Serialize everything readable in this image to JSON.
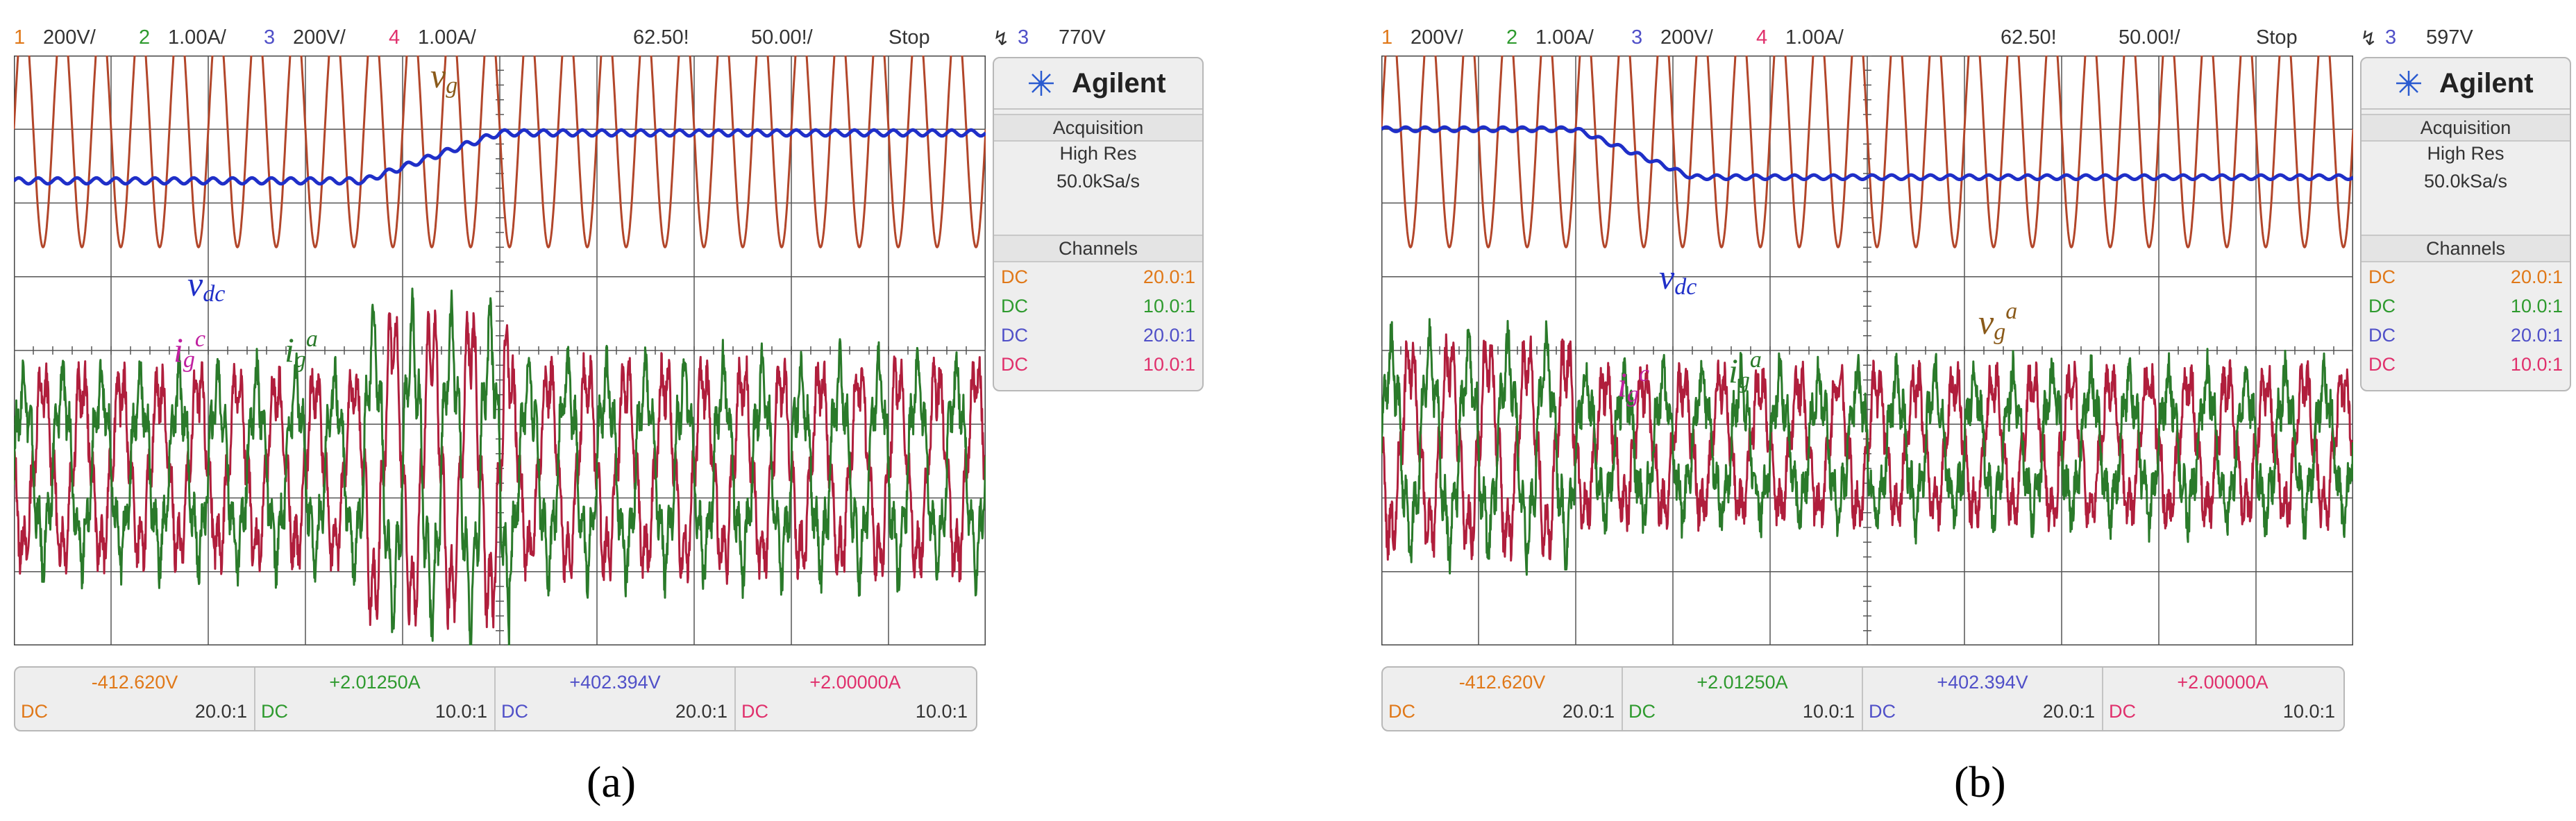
{
  "panels": [
    {
      "caption": "(a)",
      "top_bar": {
        "ch1": {
          "num": "1",
          "scale": "200V/"
        },
        "ch2": {
          "num": "2",
          "scale": "1.00A/"
        },
        "ch3": {
          "num": "3",
          "scale": "200V/"
        },
        "ch4": {
          "num": "4",
          "scale": "1.00A/"
        },
        "timebase": "62.50!",
        "time_div": "50.00!/",
        "run_state": "Stop",
        "trigger": {
          "source": "3",
          "level": "770V"
        }
      },
      "side_panel": {
        "brand": "Agilent",
        "acq_title": "Acquisition",
        "acq_mode": "High Res",
        "sample_rate": "50.0kSa/s",
        "channels_title": "Channels",
        "channels": [
          {
            "coupling": "DC",
            "probe": "20.0:1",
            "color": "#e07818"
          },
          {
            "coupling": "DC",
            "probe": "10.0:1",
            "color": "#2e9a2e"
          },
          {
            "coupling": "DC",
            "probe": "20.0:1",
            "color": "#5050c8"
          },
          {
            "coupling": "DC",
            "probe": "10.0:1",
            "color": "#e0306c"
          }
        ]
      },
      "bottom_bar": [
        {
          "value": "-412.620V",
          "coupling": "DC",
          "probe": "20.0:1",
          "color": "#e07818"
        },
        {
          "value": "+2.01250A",
          "coupling": "DC",
          "probe": "10.0:1",
          "color": "#2e9a2e"
        },
        {
          "value": "+402.394V",
          "coupling": "DC",
          "probe": "20.0:1",
          "color": "#5050c8"
        },
        {
          "value": "+2.00000A",
          "coupling": "DC",
          "probe": "10.0:1",
          "color": "#e0306c"
        }
      ],
      "labels": {
        "vg": {
          "base": "v",
          "sub": "g",
          "sup": ""
        },
        "vdc": {
          "base": "v",
          "sub": "dc",
          "sup": ""
        },
        "igc": {
          "base": "i",
          "sub": "g",
          "sup": "c"
        },
        "iga": {
          "base": "i",
          "sub": "g",
          "sup": "a"
        }
      }
    },
    {
      "caption": "(b)",
      "top_bar": {
        "ch1": {
          "num": "1",
          "scale": "200V/"
        },
        "ch2": {
          "num": "2",
          "scale": "1.00A/"
        },
        "ch3": {
          "num": "3",
          "scale": "200V/"
        },
        "ch4": {
          "num": "4",
          "scale": "1.00A/"
        },
        "timebase": "62.50!",
        "time_div": "50.00!/",
        "run_state": "Stop",
        "trigger": {
          "source": "3",
          "level": "597V"
        }
      },
      "side_panel": {
        "brand": "Agilent",
        "acq_title": "Acquisition",
        "acq_mode": "High Res",
        "sample_rate": "50.0kSa/s",
        "channels_title": "Channels",
        "channels": [
          {
            "coupling": "DC",
            "probe": "20.0:1",
            "color": "#e07818"
          },
          {
            "coupling": "DC",
            "probe": "10.0:1",
            "color": "#2e9a2e"
          },
          {
            "coupling": "DC",
            "probe": "20.0:1",
            "color": "#5050c8"
          },
          {
            "coupling": "DC",
            "probe": "10.0:1",
            "color": "#e0306c"
          }
        ]
      },
      "bottom_bar": [
        {
          "value": "-412.620V",
          "coupling": "DC",
          "probe": "20.0:1",
          "color": "#e07818"
        },
        {
          "value": "+2.01250A",
          "coupling": "DC",
          "probe": "10.0:1",
          "color": "#2e9a2e"
        },
        {
          "value": "+402.394V",
          "coupling": "DC",
          "probe": "20.0:1",
          "color": "#5050c8"
        },
        {
          "value": "+2.00000A",
          "coupling": "DC",
          "probe": "10.0:1",
          "color": "#e0306c"
        }
      ],
      "labels": {
        "vg": {
          "base": "v",
          "sub": "g",
          "sup": "a"
        },
        "vdc": {
          "base": "v",
          "sub": "dc",
          "sup": ""
        },
        "igc": {
          "base": "i",
          "sub": "g",
          "sup": "c"
        },
        "iga": {
          "base": "i",
          "sub": "g",
          "sup": "a"
        }
      }
    }
  ],
  "chart_data": [
    {
      "type": "line",
      "panel": "(a)",
      "series": [
        {
          "name": "vg",
          "color": "#b2462a",
          "kind": "sinusoid",
          "cycles": 25,
          "amplitude_div": 1.6,
          "offset_div": 3.0
        },
        {
          "name": "vdc",
          "color": "#1f2fc8",
          "kind": "step",
          "start_div": 2.3,
          "end_div": 2.95,
          "step_from_time_frac": 0.36,
          "step_to_time_frac": 0.5,
          "ripple_div": 0.04
        },
        {
          "name": "ig^c",
          "color": "#b01e3c",
          "kind": "sinusoid",
          "cycles": 25,
          "phase": 3.1416,
          "amplitude_before_div": 1.1,
          "amplitude_middle_div": 1.75,
          "amplitude_after_div": 1.2,
          "middle_from_time_frac": 0.36,
          "middle_to_time_frac": 0.51,
          "offset_div": -1.6
        },
        {
          "name": "ig^a",
          "color": "#2a7a2a",
          "kind": "sinusoid",
          "cycles": 25,
          "phase": 0,
          "amplitude_before_div": 1.1,
          "amplitude_middle_div": 1.75,
          "amplitude_after_div": 1.2,
          "middle_from_time_frac": 0.36,
          "middle_to_time_frac": 0.51,
          "offset_div": -1.6
        }
      ],
      "xlim_div": [
        -5,
        5
      ],
      "ylim_div": [
        -4,
        4
      ],
      "grid": true
    },
    {
      "type": "line",
      "panel": "(b)",
      "series": [
        {
          "name": "vg^a",
          "color": "#b2462a",
          "kind": "sinusoid",
          "cycles": 25,
          "amplitude_div": 1.6,
          "offset_div": 3.0
        },
        {
          "name": "vdc",
          "color": "#1f2fc8",
          "kind": "step",
          "start_div": 3.0,
          "end_div": 2.35,
          "step_from_time_frac": 0.2,
          "step_to_time_frac": 0.32,
          "ripple_div": 0.03
        },
        {
          "name": "ig^c",
          "color": "#b01e3c",
          "kind": "sinusoid",
          "cycles": 25,
          "phase": 3.1416,
          "amplitude_before_div": 1.2,
          "amplitude_middle_div": 0.85,
          "amplitude_after_div": 0.85,
          "middle_from_time_frac": 0.2,
          "middle_to_time_frac": 1.0,
          "offset_div": -1.3
        },
        {
          "name": "ig^a",
          "color": "#2a7a2a",
          "kind": "sinusoid",
          "cycles": 25,
          "phase": 0,
          "amplitude_before_div": 1.2,
          "amplitude_middle_div": 0.85,
          "amplitude_after_div": 0.85,
          "middle_from_time_frac": 0.2,
          "middle_to_time_frac": 1.0,
          "offset_div": -1.3
        }
      ],
      "xlim_div": [
        -5,
        5
      ],
      "ylim_div": [
        -4,
        4
      ],
      "grid": true
    }
  ]
}
